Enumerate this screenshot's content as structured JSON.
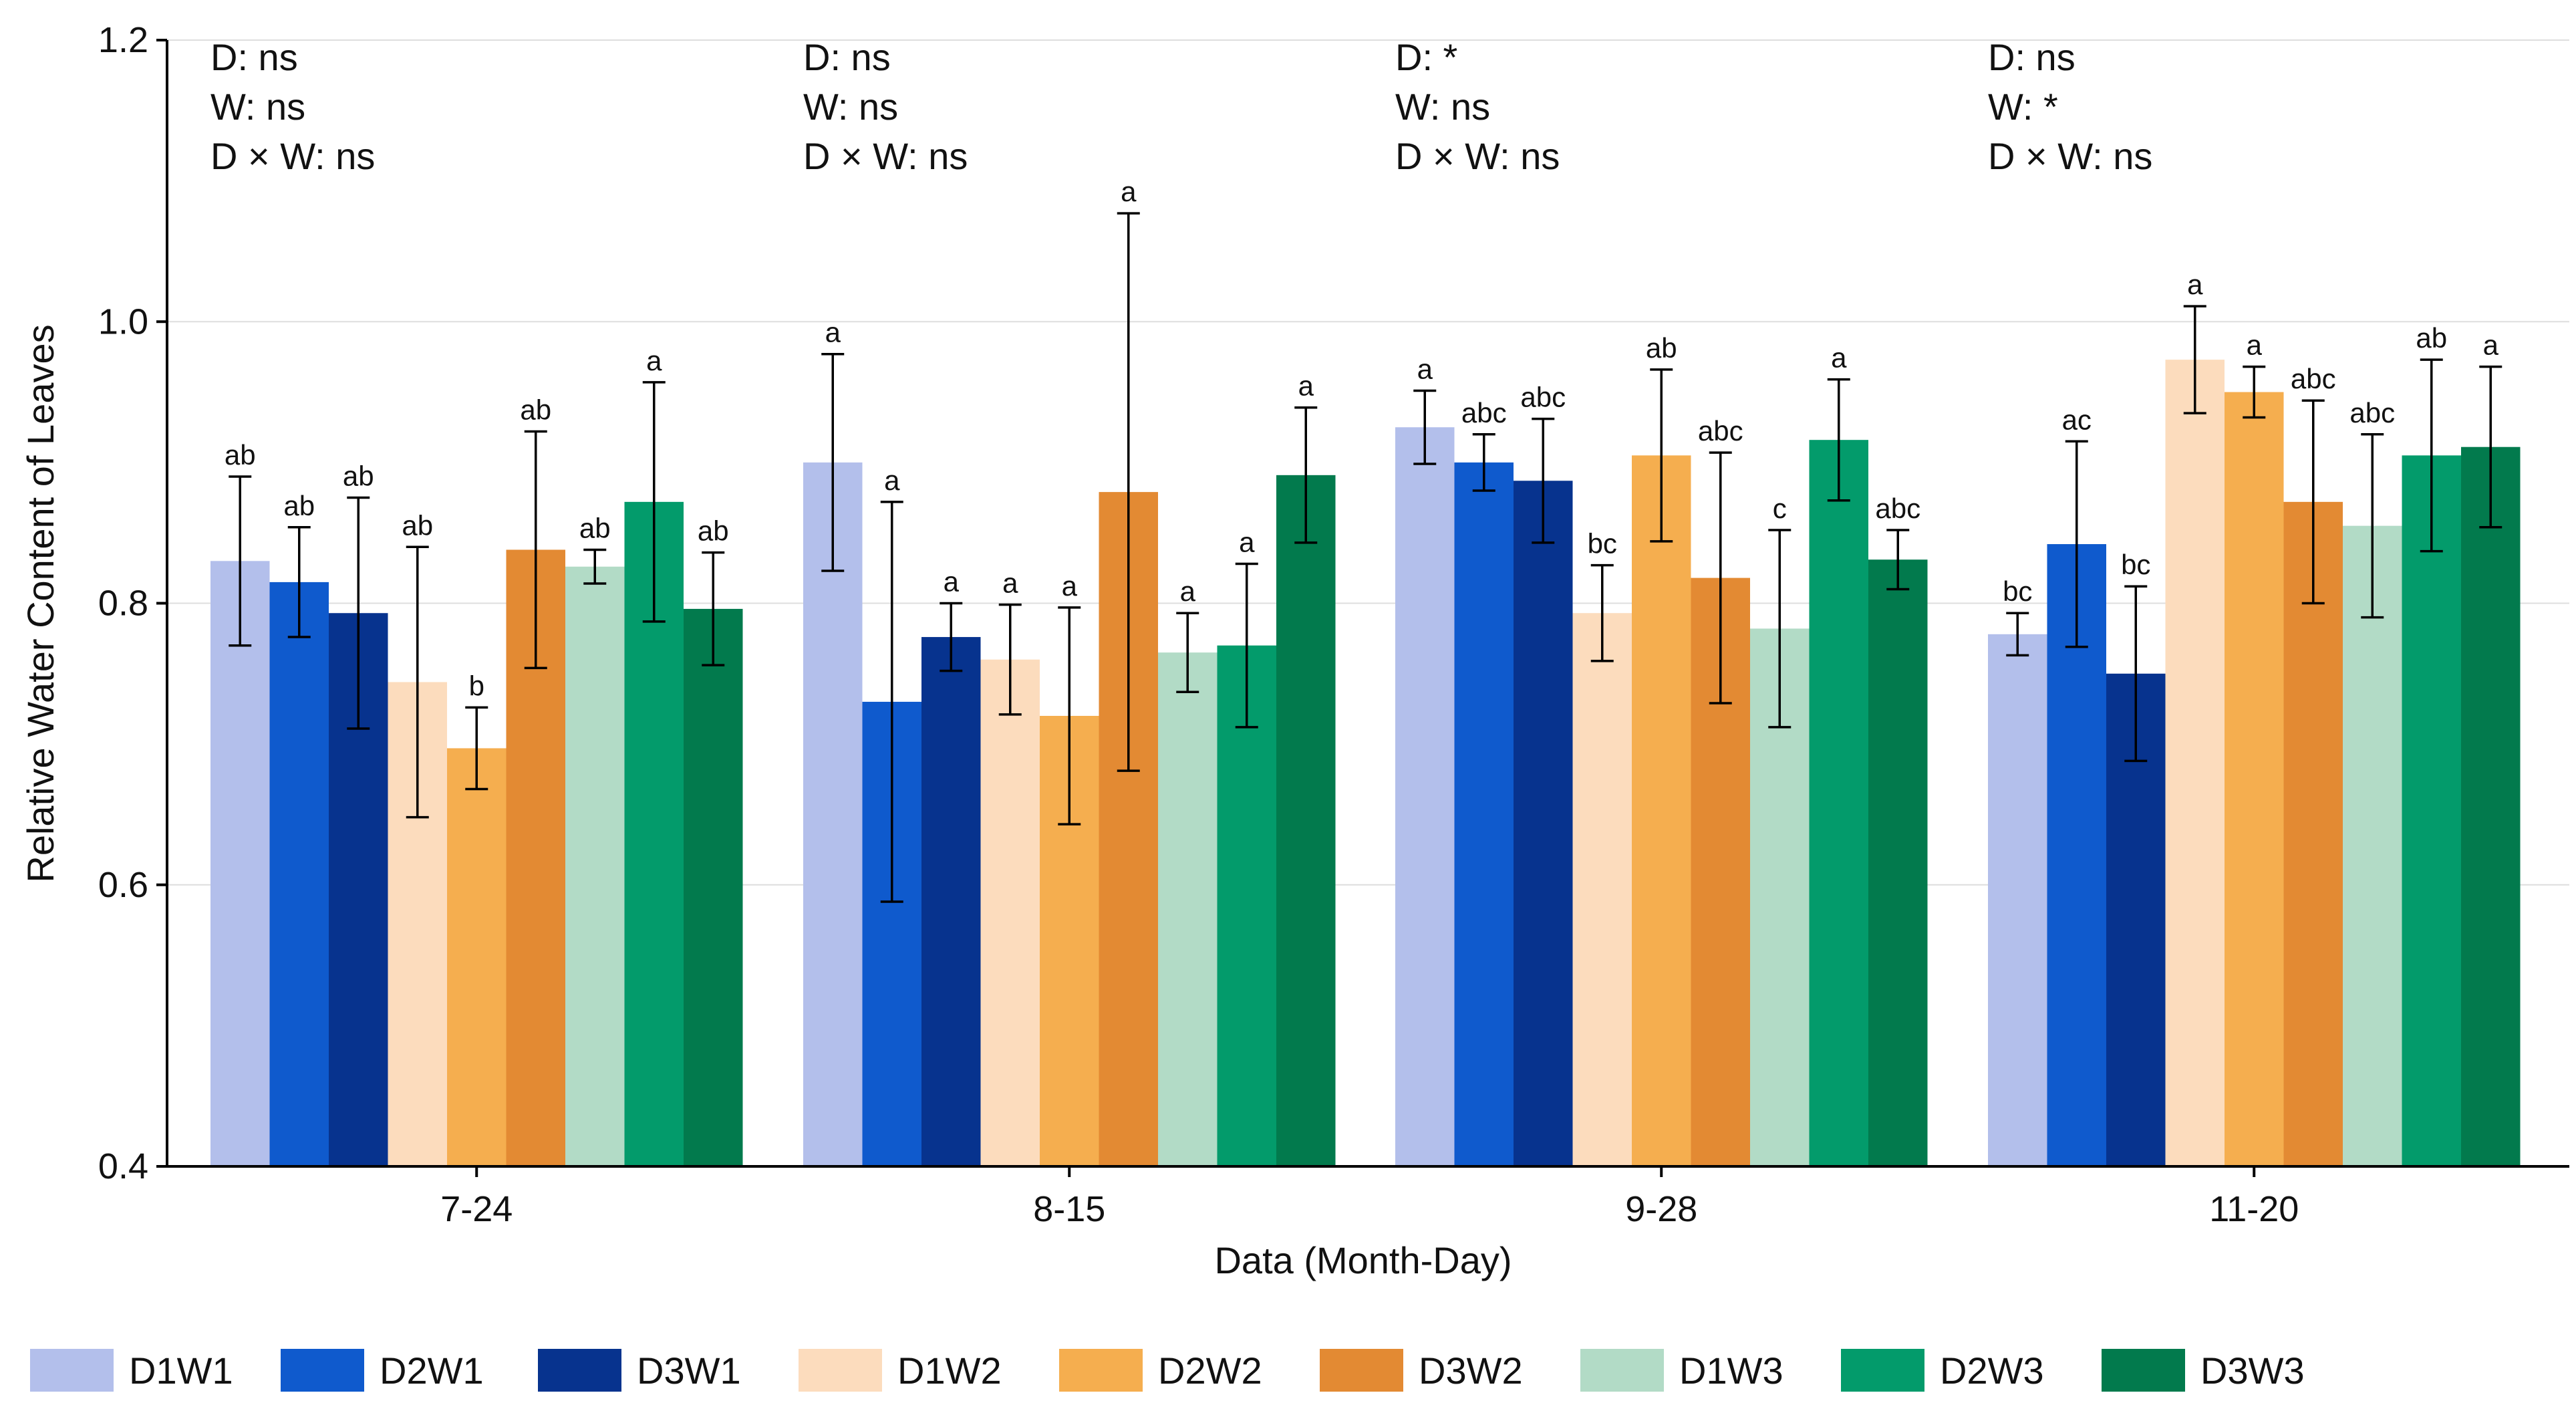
{
  "chart_data": {
    "type": "bar",
    "title": "",
    "xlabel": "Data (Month-Day)",
    "ylabel": "Relative Water Content of Leaves",
    "ylim": [
      0.4,
      1.2
    ],
    "yticks": [
      0.4,
      0.6,
      0.8,
      1.0,
      1.2
    ],
    "ytick_labels": [
      "0.4",
      "0.6",
      "0.8",
      "1.0",
      "1.2"
    ],
    "grid": true,
    "legend_position": "bottom",
    "categories": [
      "7-24",
      "8-15",
      "9-28",
      "11-20"
    ],
    "annotations": [
      [
        "D: ns",
        "W: ns",
        "D × W: ns"
      ],
      [
        "D: ns",
        "W: ns",
        "D × W: ns"
      ],
      [
        "D: *",
        "W: ns",
        "D × W: ns"
      ],
      [
        "D: ns",
        "W: *",
        "D × W: ns"
      ]
    ],
    "series": [
      {
        "name": "D1W1",
        "color": "#b3bfeb",
        "values": [
          0.83,
          0.9,
          0.925,
          0.778
        ],
        "errors": [
          0.06,
          0.077,
          0.026,
          0.015
        ],
        "letters": [
          "ab",
          "a",
          "a",
          "bc"
        ]
      },
      {
        "name": "D2W1",
        "color": "#0f5acd",
        "values": [
          0.815,
          0.73,
          0.9,
          0.842
        ],
        "errors": [
          0.039,
          0.142,
          0.02,
          0.073
        ],
        "letters": [
          "ab",
          "a",
          "abc",
          "ac"
        ]
      },
      {
        "name": "D3W1",
        "color": "#07338e",
        "values": [
          0.793,
          0.776,
          0.887,
          0.75
        ],
        "errors": [
          0.082,
          0.024,
          0.044,
          0.062
        ],
        "letters": [
          "ab",
          "a",
          "abc",
          "bc"
        ]
      },
      {
        "name": "D1W2",
        "color": "#fcdcbd",
        "values": [
          0.744,
          0.76,
          0.793,
          0.973
        ],
        "errors": [
          0.096,
          0.039,
          0.034,
          0.038
        ],
        "letters": [
          "ab",
          "a",
          "bc",
          "a"
        ]
      },
      {
        "name": "D2W2",
        "color": "#f5ae4f",
        "values": [
          0.697,
          0.72,
          0.905,
          0.95
        ],
        "errors": [
          0.029,
          0.077,
          0.061,
          0.018
        ],
        "letters": [
          "b",
          "a",
          "ab",
          "a"
        ]
      },
      {
        "name": "D3W2",
        "color": "#e38a33",
        "values": [
          0.838,
          0.879,
          0.818,
          0.872
        ],
        "errors": [
          0.084,
          0.198,
          0.089,
          0.072
        ],
        "letters": [
          "ab",
          "a",
          "abc",
          "abc"
        ]
      },
      {
        "name": "D1W3",
        "color": "#b2dbc6",
        "values": [
          0.826,
          0.765,
          0.782,
          0.855
        ],
        "errors": [
          0.012,
          0.028,
          0.07,
          0.065
        ],
        "letters": [
          "ab",
          "a",
          "c",
          "abc"
        ]
      },
      {
        "name": "D2W3",
        "color": "#039b6b",
        "values": [
          0.872,
          0.77,
          0.916,
          0.905
        ],
        "errors": [
          0.085,
          0.058,
          0.043,
          0.068
        ],
        "letters": [
          "a",
          "a",
          "a",
          "ab"
        ]
      },
      {
        "name": "D3W3",
        "color": "#027a4d",
        "values": [
          0.796,
          0.891,
          0.831,
          0.911
        ],
        "errors": [
          0.04,
          0.048,
          0.021,
          0.057
        ],
        "letters": [
          "ab",
          "a",
          "abc",
          "a"
        ]
      }
    ]
  }
}
